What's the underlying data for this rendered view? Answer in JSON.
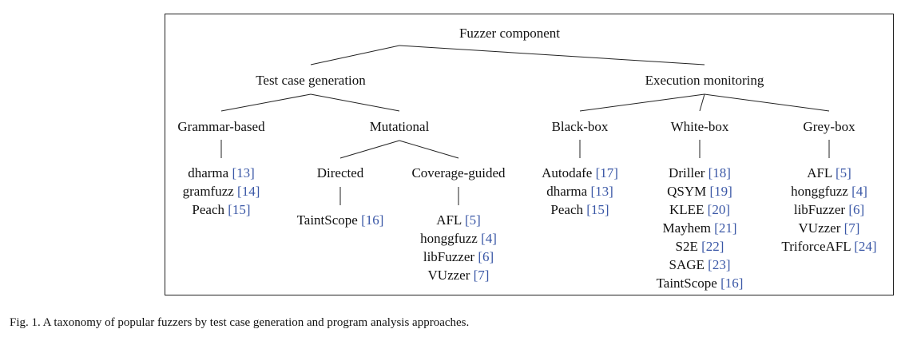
{
  "diagram": {
    "root": "Fuzzer component",
    "branches": [
      {
        "id": "tcg",
        "label": "Test case generation"
      },
      {
        "id": "em",
        "label": "Execution monitoring"
      }
    ],
    "categories": [
      {
        "id": "grammar",
        "label": "Grammar-based",
        "parent": "tcg"
      },
      {
        "id": "mutational",
        "label": "Mutational",
        "parent": "tcg"
      },
      {
        "id": "blackbox",
        "label": "Black-box",
        "parent": "em"
      },
      {
        "id": "whitebox",
        "label": "White-box",
        "parent": "em"
      },
      {
        "id": "greybox",
        "label": "Grey-box",
        "parent": "em"
      }
    ],
    "subcategories": [
      {
        "id": "directed",
        "label": "Directed",
        "parent": "mutational"
      },
      {
        "id": "coverage",
        "label": "Coverage-guided",
        "parent": "mutational"
      }
    ],
    "tools": {
      "grammar": [
        {
          "name": "dharma",
          "ref": "[13]"
        },
        {
          "name": "gramfuzz",
          "ref": "[14]"
        },
        {
          "name": "Peach",
          "ref": "[15]"
        }
      ],
      "directed": [
        {
          "name": "TaintScope",
          "ref": "[16]"
        }
      ],
      "coverage": [
        {
          "name": "AFL",
          "ref": "[5]"
        },
        {
          "name": "honggfuzz",
          "ref": "[4]"
        },
        {
          "name": "libFuzzer",
          "ref": "[6]"
        },
        {
          "name": "VUzzer",
          "ref": "[7]"
        }
      ],
      "blackbox": [
        {
          "name": "Autodafe",
          "ref": "[17]"
        },
        {
          "name": "dharma",
          "ref": "[13]"
        },
        {
          "name": "Peach",
          "ref": "[15]"
        }
      ],
      "whitebox": [
        {
          "name": "Driller",
          "ref": "[18]"
        },
        {
          "name": "QSYM",
          "ref": "[19]"
        },
        {
          "name": "KLEE",
          "ref": "[20]"
        },
        {
          "name": "Mayhem",
          "ref": "[21]"
        },
        {
          "name": "S2E",
          "ref": "[22]"
        },
        {
          "name": "SAGE",
          "ref": "[23]"
        },
        {
          "name": "TaintScope",
          "ref": "[16]"
        }
      ],
      "greybox": [
        {
          "name": "AFL",
          "ref": "[5]"
        },
        {
          "name": "honggfuzz",
          "ref": "[4]"
        },
        {
          "name": "libFuzzer",
          "ref": "[6]"
        },
        {
          "name": "VUzzer",
          "ref": "[7]"
        },
        {
          "name": "TriforceAFL",
          "ref": "[24]"
        }
      ]
    },
    "citation_color": "#3a57a6"
  },
  "caption": "Fig. 1.   A taxonomy of popular fuzzers by test case generation and program analysis approaches."
}
